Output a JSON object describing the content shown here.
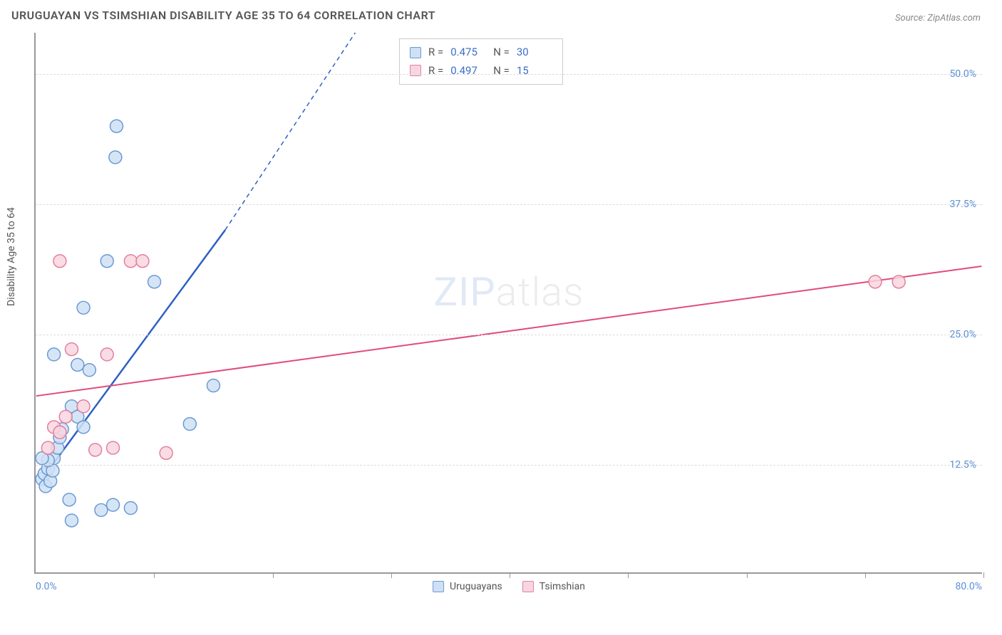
{
  "title": "URUGUAYAN VS TSIMSHIAN DISABILITY AGE 35 TO 64 CORRELATION CHART",
  "source": "Source: ZipAtlas.com",
  "ylabel": "Disability Age 35 to 64",
  "watermark_bold": "ZIP",
  "watermark_thin": "atlas",
  "chart": {
    "type": "scatter",
    "background_color": "#ffffff",
    "grid_color": "#dddddd",
    "axis_color": "#999999",
    "xlim": [
      0,
      80
    ],
    "ylim": [
      2,
      54
    ],
    "x_ticks": [
      10,
      20,
      30,
      40,
      50,
      60,
      70,
      80
    ],
    "y_gridlines": [
      12.5,
      25.0,
      37.5,
      50.0
    ],
    "y_tick_labels": [
      "12.5%",
      "25.0%",
      "37.5%",
      "50.0%"
    ],
    "x_min_label": "0.0%",
    "x_max_label": "80.0%",
    "tick_label_color": "#5b8fd6",
    "label_fontsize": 14,
    "title_fontsize": 16,
    "marker_radius": 9,
    "series": [
      {
        "name": "Uruguayans",
        "marker_fill": "#cfe0f5",
        "marker_stroke": "#6a9ad4",
        "line_color": "#2d5fc4",
        "line_width": 2.5,
        "R": "0.475",
        "N": "30",
        "points": [
          [
            0.5,
            11.0
          ],
          [
            0.7,
            11.5
          ],
          [
            0.8,
            10.3
          ],
          [
            1.0,
            12.0
          ],
          [
            1.2,
            10.8
          ],
          [
            1.4,
            11.8
          ],
          [
            1.5,
            13.0
          ],
          [
            1.0,
            12.8
          ],
          [
            1.8,
            14.0
          ],
          [
            2.0,
            15.0
          ],
          [
            2.2,
            15.8
          ],
          [
            0.5,
            13.0
          ],
          [
            3.0,
            18.0
          ],
          [
            3.5,
            17.0
          ],
          [
            4.0,
            16.0
          ],
          [
            5.5,
            8.0
          ],
          [
            3.0,
            7.0
          ],
          [
            6.5,
            8.5
          ],
          [
            2.8,
            9.0
          ],
          [
            4.5,
            21.5
          ],
          [
            6.0,
            32.0
          ],
          [
            4.0,
            27.5
          ],
          [
            3.5,
            22.0
          ],
          [
            10.0,
            30.0
          ],
          [
            13.0,
            16.3
          ],
          [
            6.7,
            42.0
          ],
          [
            6.8,
            45.0
          ],
          [
            1.5,
            23.0
          ],
          [
            15.0,
            20.0
          ],
          [
            8.0,
            8.2
          ]
        ],
        "trend": {
          "x1": 0.5,
          "y1": 11.0,
          "x2": 16.0,
          "y2": 35.0,
          "extend_x2": 27.0,
          "extend_y2": 54.0
        }
      },
      {
        "name": "Tsimshian",
        "marker_fill": "#f8d6df",
        "marker_stroke": "#e37fa0",
        "line_color": "#e14b7a",
        "line_width": 2,
        "R": "0.497",
        "N": "15",
        "points": [
          [
            1.0,
            14.0
          ],
          [
            1.5,
            16.0
          ],
          [
            2.0,
            15.5
          ],
          [
            2.5,
            17.0
          ],
          [
            3.0,
            23.5
          ],
          [
            4.0,
            18.0
          ],
          [
            5.0,
            13.8
          ],
          [
            6.0,
            23.0
          ],
          [
            6.5,
            14.0
          ],
          [
            8.0,
            32.0
          ],
          [
            9.0,
            32.0
          ],
          [
            11.0,
            13.5
          ],
          [
            2.0,
            32.0
          ],
          [
            71.0,
            30.0
          ],
          [
            73.0,
            30.0
          ]
        ],
        "trend": {
          "x1": 0,
          "y1": 19.0,
          "x2": 80,
          "y2": 31.5
        }
      }
    ],
    "legend_bottom": [
      {
        "label": "Uruguayans",
        "fill": "#cfe0f5",
        "stroke": "#6a9ad4"
      },
      {
        "label": "Tsimshian",
        "fill": "#f8d6df",
        "stroke": "#e37fa0"
      }
    ]
  }
}
